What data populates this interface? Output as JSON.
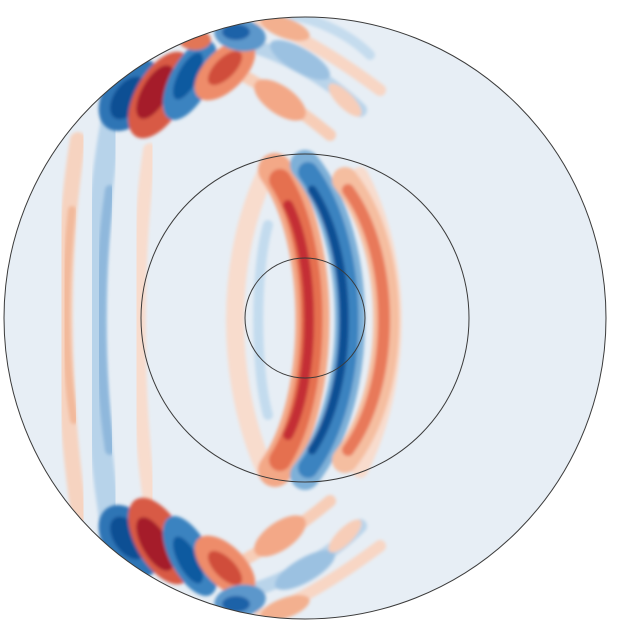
{
  "figure": {
    "background": "#ffffff",
    "domain_fill": "#e7eef5",
    "boundary_color": "#333333",
    "colormap": {
      "negative_dark": "#08519c",
      "negative_mid": "#3b83c0",
      "negative_light": "#a9cbe5",
      "positive_light": "#f9c2a3",
      "positive_mid": "#e2684b",
      "positive_dark": "#b2182b"
    }
  }
}
